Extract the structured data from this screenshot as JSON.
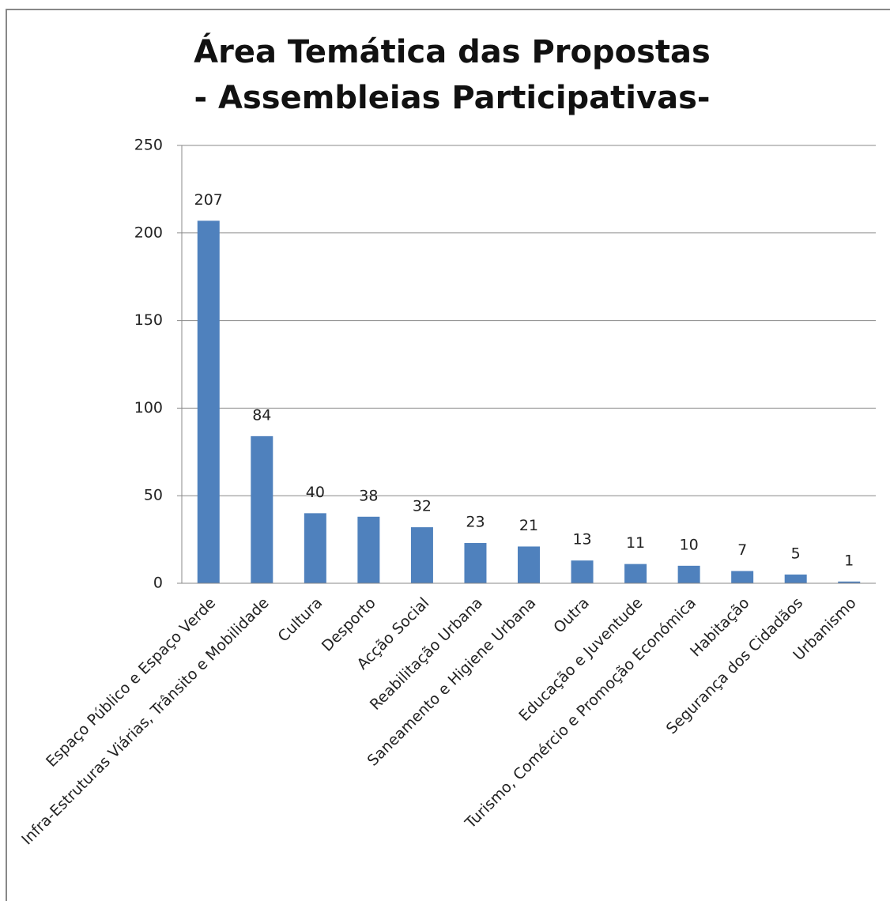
{
  "chart_data": {
    "type": "bar",
    "title": [
      "Área Temática das Propostas",
      "- Assembleias Participativas-"
    ],
    "categories": [
      "Espaço Público e Espaço Verde",
      "Infra-Estruturas Viárias, Trânsito e Mobilidade",
      "Cultura",
      "Desporto",
      "Acção Social",
      "Reabilitação Urbana",
      "Saneamento e Higiene Urbana",
      "Outra",
      "Educação e Juventude",
      "Turismo, Comércio e Promoção Económica",
      "Habitação",
      "Segurança dos Cidadãos",
      "Urbanismo"
    ],
    "values": [
      207,
      84,
      40,
      38,
      32,
      23,
      21,
      13,
      11,
      10,
      7,
      5,
      1
    ],
    "color": "#4f81bd",
    "ylim": [
      0,
      250
    ],
    "yticks": [
      0,
      50,
      100,
      150,
      200,
      250
    ],
    "grid": true
  }
}
